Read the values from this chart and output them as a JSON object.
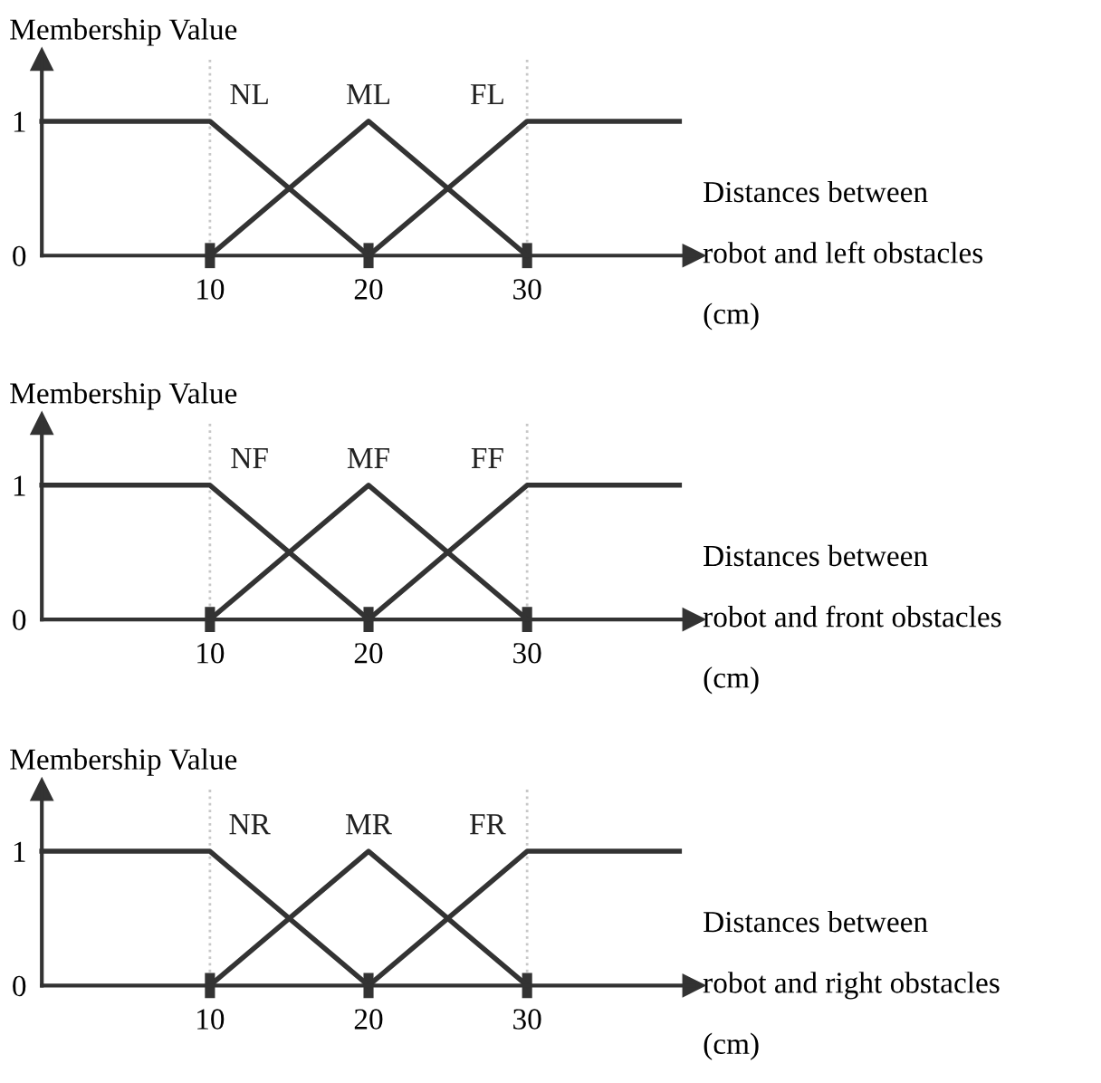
{
  "chart_data": [
    {
      "type": "line",
      "ylabel": "Membership Value",
      "xlabel": "Distances between\nrobot and left obstacles\n(cm)",
      "xlim": [
        -0.6,
        40.5
      ],
      "xticks": [
        10,
        20,
        30
      ],
      "ylim": [
        0,
        1.46
      ],
      "yticks": [
        0,
        1
      ],
      "series": [
        {
          "name": "NL",
          "color": "#333333",
          "x": [
            -0.6,
            10,
            20
          ],
          "values": [
            1,
            1,
            0
          ]
        },
        {
          "name": "ML",
          "color": "#333333",
          "x": [
            10,
            20,
            30
          ],
          "values": [
            0,
            1,
            0
          ]
        },
        {
          "name": "FL",
          "color": "#333333",
          "x": [
            20,
            30,
            39.6
          ],
          "values": [
            0,
            1,
            1
          ]
        }
      ],
      "ref_lines": [
        {
          "axis": "x",
          "value": 10,
          "color": "#c8c8c8",
          "line_style": "dotted"
        },
        {
          "axis": "x",
          "value": 30,
          "color": "#c8c8c8",
          "line_style": "dotted"
        }
      ]
    },
    {
      "type": "line",
      "ylabel": "Membership Value",
      "xlabel": "Distances between\nrobot and front obstacles\n(cm)",
      "xlim": [
        -0.6,
        40.5
      ],
      "xticks": [
        10,
        20,
        30
      ],
      "ylim": [
        0,
        1.46
      ],
      "yticks": [
        0,
        1
      ],
      "series": [
        {
          "name": "NF",
          "color": "#333333",
          "x": [
            -0.6,
            10,
            20
          ],
          "values": [
            1,
            1,
            0
          ]
        },
        {
          "name": "MF",
          "color": "#333333",
          "x": [
            10,
            20,
            30
          ],
          "values": [
            0,
            1,
            0
          ]
        },
        {
          "name": "FF",
          "color": "#333333",
          "x": [
            20,
            30,
            39.6
          ],
          "values": [
            0,
            1,
            1
          ]
        }
      ],
      "ref_lines": [
        {
          "axis": "x",
          "value": 10,
          "color": "#c8c8c8",
          "line_style": "dotted"
        },
        {
          "axis": "x",
          "value": 30,
          "color": "#c8c8c8",
          "line_style": "dotted"
        }
      ]
    },
    {
      "type": "line",
      "ylabel": "Membership Value",
      "xlabel": "Distances between\nrobot and right obstacles\n(cm)",
      "xlim": [
        -0.6,
        40.5
      ],
      "xticks": [
        10,
        20,
        30
      ],
      "ylim": [
        0,
        1.46
      ],
      "yticks": [
        0,
        1
      ],
      "series": [
        {
          "name": "NR",
          "color": "#333333",
          "x": [
            -0.6,
            10,
            20
          ],
          "values": [
            1,
            1,
            0
          ]
        },
        {
          "name": "MR",
          "color": "#333333",
          "x": [
            10,
            20,
            30
          ],
          "values": [
            0,
            1,
            0
          ]
        },
        {
          "name": "FR",
          "color": "#333333",
          "x": [
            20,
            30,
            39.6
          ],
          "values": [
            0,
            1,
            1
          ]
        }
      ],
      "ref_lines": [
        {
          "axis": "x",
          "value": 10,
          "color": "#c8c8c8",
          "line_style": "dotted"
        },
        {
          "axis": "x",
          "value": 30,
          "color": "#c8c8c8",
          "line_style": "dotted"
        }
      ]
    }
  ]
}
